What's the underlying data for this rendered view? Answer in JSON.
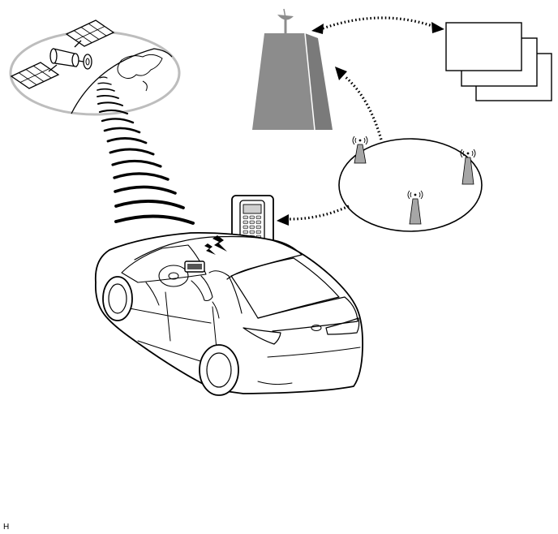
{
  "figure": {
    "corner_code": "H",
    "colors": {
      "line": "#000000",
      "building_fill": "#8c8c8c",
      "building_dark": "#6e6e6e",
      "orbit_ring": "#bdbdbd",
      "tower_fill": "#a6a6a6",
      "background": "#ffffff"
    },
    "nodes": [
      {
        "id": "satellite",
        "icon": "satellite-icon"
      },
      {
        "id": "earth",
        "icon": "globe-icon"
      },
      {
        "id": "data-center",
        "icon": "building-icon"
      },
      {
        "id": "documents",
        "icon": "document-stack-icon"
      },
      {
        "id": "cellular-network",
        "icon": "cell-tower-icon"
      },
      {
        "id": "mobile-phone",
        "icon": "phone-icon"
      },
      {
        "id": "vehicle",
        "icon": "car-icon"
      }
    ],
    "connections": [
      {
        "from": "satellite",
        "to": "vehicle",
        "style": "radio-waves"
      },
      {
        "from": "data-center",
        "to": "documents",
        "style": "dotted-bidirectional"
      },
      {
        "from": "cellular-network",
        "to": "data-center",
        "style": "dotted-arrow"
      },
      {
        "from": "cellular-network",
        "to": "mobile-phone",
        "style": "dotted-arrow"
      },
      {
        "from": "mobile-phone",
        "to": "vehicle",
        "style": "wireless-bolt"
      }
    ]
  }
}
